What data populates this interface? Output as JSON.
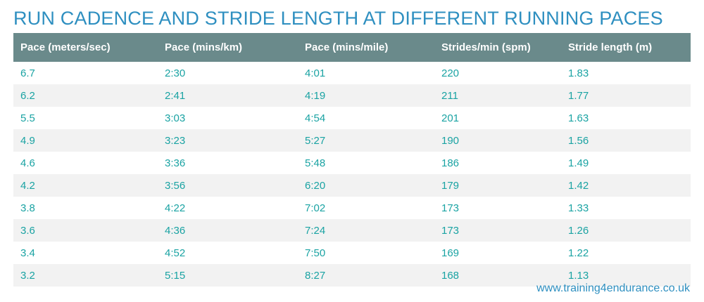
{
  "title": "RUN CADENCE AND STRIDE LENGTH AT DIFFERENT RUNNING PACES",
  "footer": "www.training4endurance.co.uk",
  "colors": {
    "title": "#2e8fc0",
    "header_bg": "#6a8a8b",
    "header_text": "#ffffff",
    "cell_text": "#1aa3a3",
    "stripe": "#f2f2f2"
  },
  "chart_data": {
    "type": "table",
    "title": "RUN CADENCE AND STRIDE LENGTH AT DIFFERENT RUNNING PACES",
    "columns": [
      "Pace (meters/sec)",
      "Pace (mins/km)",
      "Pace (mins/mile)",
      "Strides/min (spm)",
      "Stride length (m)"
    ],
    "rows": [
      [
        "6.7",
        "2:30",
        "4:01",
        "220",
        "1.83"
      ],
      [
        "6.2",
        "2:41",
        "4:19",
        "211",
        "1.77"
      ],
      [
        "5.5",
        "3:03",
        "4:54",
        "201",
        "1.63"
      ],
      [
        "4.9",
        "3:23",
        "5:27",
        "190",
        "1.56"
      ],
      [
        "4.6",
        "3:36",
        "5:48",
        "186",
        "1.49"
      ],
      [
        "4.2",
        "3:56",
        "6:20",
        "179",
        "1.42"
      ],
      [
        "3.8",
        "4:22",
        "7:02",
        "173",
        "1.33"
      ],
      [
        "3.6",
        "4:36",
        "7:24",
        "173",
        "1.26"
      ],
      [
        "3.4",
        "4:52",
        "7:50",
        "169",
        "1.22"
      ],
      [
        "3.2",
        "5:15",
        "8:27",
        "168",
        "1.13"
      ]
    ]
  }
}
